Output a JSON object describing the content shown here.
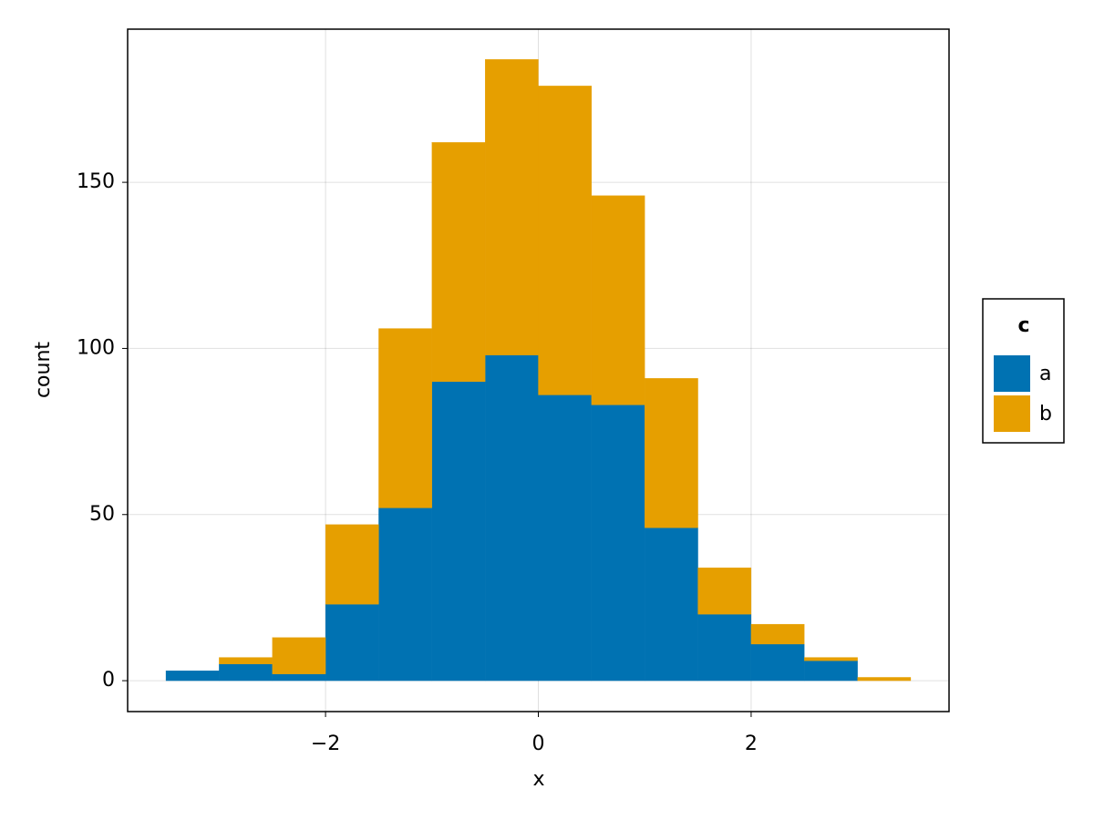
{
  "chart_data": {
    "type": "histogram",
    "stacked": true,
    "x_label": "x",
    "y_label": "count",
    "bins": [
      -3.5,
      -3,
      -2.5,
      -2,
      -1.5,
      -1,
      -0.5,
      0,
      0.5,
      1,
      1.5,
      2,
      2.5,
      3,
      3.5
    ],
    "series": [
      {
        "name": "a",
        "color": "#0072b2",
        "values": [
          3,
          5,
          2,
          23,
          52,
          90,
          98,
          86,
          83,
          46,
          20,
          11,
          6,
          0
        ]
      },
      {
        "name": "b",
        "color": "#e69f00",
        "values": [
          0,
          2,
          11,
          24,
          54,
          72,
          89,
          93,
          63,
          45,
          14,
          6,
          1,
          1
        ]
      }
    ],
    "legend_title": "c",
    "legend_position": "right",
    "xlim": [
      -3.86,
      3.86
    ],
    "ylim": [
      -9.3,
      196.1
    ],
    "xticks": [
      {
        "value": -2,
        "label": "−2"
      },
      0,
      2
    ],
    "yticks": [
      0,
      50,
      100,
      150
    ],
    "grid": true
  }
}
